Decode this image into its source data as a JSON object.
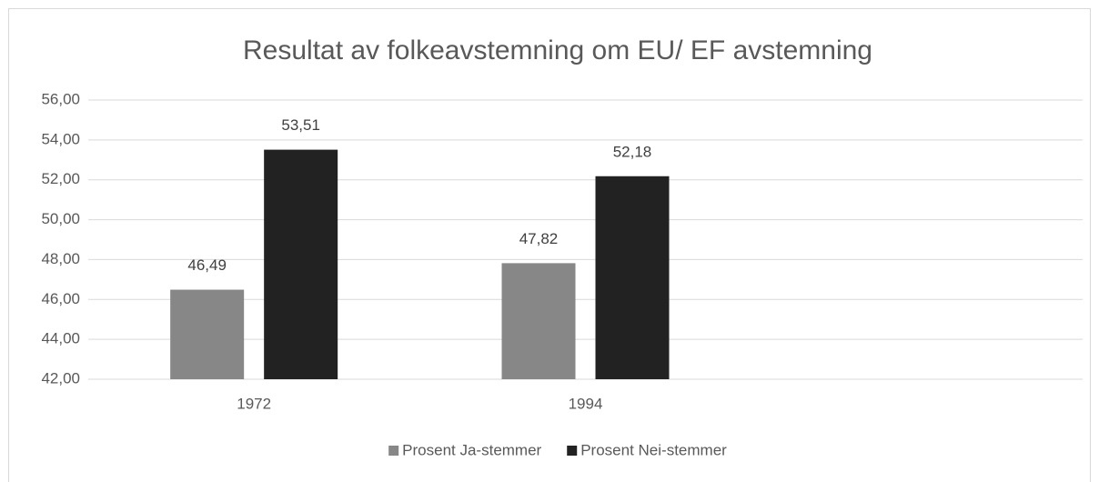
{
  "chart_data": {
    "type": "bar",
    "title": "Resultat av folkeavstemning om EU/ EF avstemning",
    "categories": [
      "1972",
      "1994",
      null
    ],
    "series": [
      {
        "name": "Prosent Ja-stemmer",
        "color": "#878787",
        "values": [
          46.49,
          47.82,
          null
        ],
        "value_labels": [
          "46,49",
          "47,82",
          null
        ]
      },
      {
        "name": "Prosent Nei-stemmer",
        "color": "#222222",
        "values": [
          53.51,
          52.18,
          null
        ],
        "value_labels": [
          "53,51",
          "52,18",
          null
        ]
      }
    ],
    "ylim": [
      42,
      56
    ],
    "yticks": [
      {
        "value": 42,
        "label": "42,00"
      },
      {
        "value": 44,
        "label": "44,00"
      },
      {
        "value": 46,
        "label": "46,00"
      },
      {
        "value": 48,
        "label": "48,00"
      },
      {
        "value": 50,
        "label": "50,00"
      },
      {
        "value": 52,
        "label": "52,00"
      },
      {
        "value": 54,
        "label": "54,00"
      },
      {
        "value": 56,
        "label": "56,00"
      }
    ],
    "grid": true,
    "legend": "bottom"
  }
}
